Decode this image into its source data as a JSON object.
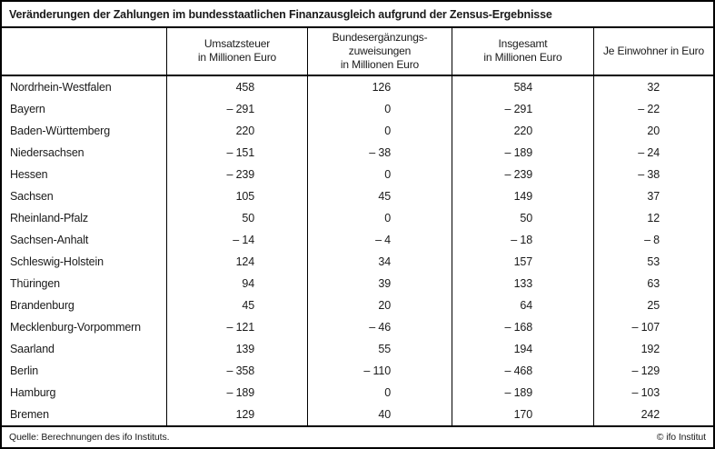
{
  "title": "Veränderungen der Zahlungen im bundesstaatlichen Finanzausgleich aufgrund der Zensus-Ergebnisse",
  "chart_data": {
    "type": "table",
    "title": "Veränderungen der Zahlungen im bundesstaatlichen Finanzausgleich aufgrund der Zensus-Ergebnisse",
    "columns": [
      "",
      "Umsatzsteuer\nin Millionen Euro",
      "Bundesergänzungs-\nzuweisungen\nin Millionen Euro",
      "Insgesamt\nin Millionen Euro",
      "Je Einwohner in Euro"
    ],
    "rows": [
      {
        "name": "Nordrhein-Westfalen",
        "values": [
          458,
          126,
          584,
          32
        ]
      },
      {
        "name": "Bayern",
        "values": [
          -291,
          0,
          -291,
          -22
        ]
      },
      {
        "name": "Baden-Württemberg",
        "values": [
          220,
          0,
          220,
          20
        ]
      },
      {
        "name": "Niedersachsen",
        "values": [
          -151,
          -38,
          -189,
          -24
        ]
      },
      {
        "name": "Hessen",
        "values": [
          -239,
          0,
          -239,
          -38
        ]
      },
      {
        "name": "Sachsen",
        "values": [
          105,
          45,
          149,
          37
        ]
      },
      {
        "name": "Rheinland-Pfalz",
        "values": [
          50,
          0,
          50,
          12
        ]
      },
      {
        "name": "Sachsen-Anhalt",
        "values": [
          -14,
          -4,
          -18,
          -8
        ]
      },
      {
        "name": "Schleswig-Holstein",
        "values": [
          124,
          34,
          157,
          53
        ]
      },
      {
        "name": "Thüringen",
        "values": [
          94,
          39,
          133,
          63
        ]
      },
      {
        "name": "Brandenburg",
        "values": [
          45,
          20,
          64,
          25
        ]
      },
      {
        "name": "Mecklenburg-Vorpommern",
        "values": [
          -121,
          -46,
          -168,
          -107
        ]
      },
      {
        "name": "Saarland",
        "values": [
          139,
          55,
          194,
          192
        ]
      },
      {
        "name": "Berlin",
        "values": [
          -358,
          -110,
          -468,
          -129
        ]
      },
      {
        "name": "Hamburg",
        "values": [
          -189,
          0,
          -189,
          -103
        ]
      },
      {
        "name": "Bremen",
        "values": [
          129,
          40,
          170,
          242
        ]
      }
    ],
    "negative_number_prefix": "– ",
    "legend_position": "none",
    "grid": "vertical-lines-only"
  },
  "footer": {
    "source": "Quelle: Berechnungen des ifo Instituts.",
    "copyright": "© ifo Institut"
  },
  "colors": {
    "border": "#000000",
    "background": "#ffffff",
    "text": "#1a1a1a"
  }
}
